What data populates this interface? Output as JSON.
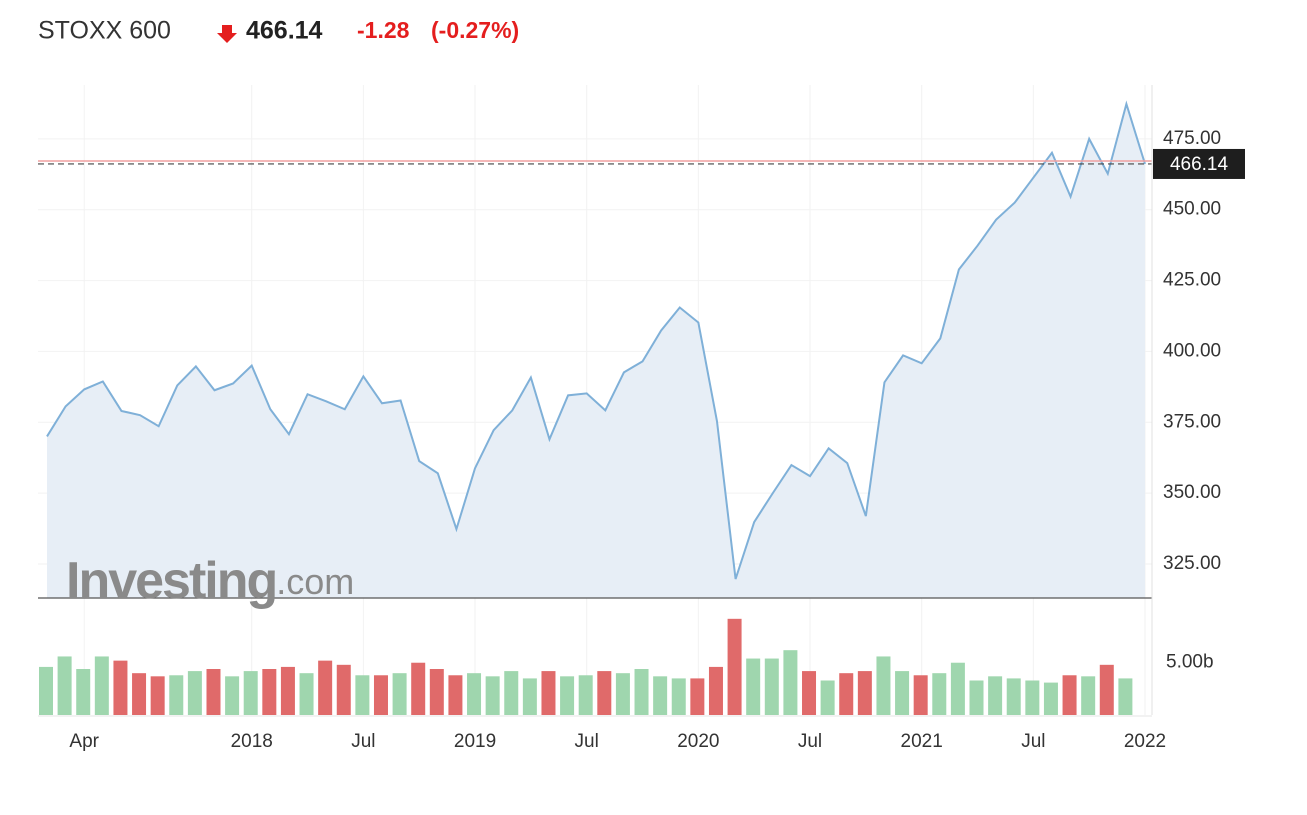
{
  "header": {
    "symbol": "STOXX 600",
    "price": "466.14",
    "change": "-1.28",
    "change_percent": "(-0.27%)"
  },
  "watermark": {
    "brand": "Investing",
    "suffix": ".com"
  },
  "chart_data": [
    {
      "type": "area",
      "color": "#7fb0d8",
      "fill": "#e7eef6",
      "grid": true,
      "x": [
        "2017-02",
        "2017-03",
        "2017-04",
        "2017-05",
        "2017-06",
        "2017-07",
        "2017-08",
        "2017-09",
        "2017-10",
        "2017-11",
        "2017-12",
        "2018-01",
        "2018-02",
        "2018-03",
        "2018-04",
        "2018-05",
        "2018-06",
        "2018-07",
        "2018-08",
        "2018-09",
        "2018-10",
        "2018-11",
        "2018-12",
        "2019-01",
        "2019-02",
        "2019-03",
        "2019-04",
        "2019-05",
        "2019-06",
        "2019-07",
        "2019-08",
        "2019-09",
        "2019-10",
        "2019-11",
        "2019-12",
        "2020-01",
        "2020-02",
        "2020-03",
        "2020-04",
        "2020-05",
        "2020-06",
        "2020-07",
        "2020-08",
        "2020-09",
        "2020-10",
        "2020-11",
        "2020-12",
        "2021-01",
        "2021-02",
        "2021-03",
        "2021-04",
        "2021-05",
        "2021-06",
        "2021-07",
        "2021-08",
        "2021-09",
        "2021-10",
        "2021-11",
        "2021-12",
        "2022-01"
      ],
      "values": [
        370,
        380.6,
        386.6,
        389.4,
        379,
        377.5,
        373.6,
        388,
        394.7,
        386.3,
        388.7,
        395,
        379.6,
        370.8,
        384.9,
        382.4,
        379.6,
        391.2,
        381.7,
        382.7,
        361.3,
        357,
        337.3,
        358.8,
        372.2,
        379.2,
        390.8,
        369,
        384.5,
        385.2,
        379.2,
        392.6,
        396.5,
        407.4,
        415.5,
        410.2,
        375.4,
        319.7,
        339.8,
        350,
        359.9,
        356,
        365.8,
        360.6,
        341.9,
        389.1,
        398.6,
        395.8,
        404.6,
        428.9,
        437.3,
        446.5,
        452.5,
        461.3,
        470.1,
        454.6,
        475,
        462.7,
        487.3,
        466.14
      ],
      "last_price": 466.14,
      "xlim": [
        "2017-02",
        "2022-01"
      ],
      "xticks": [
        {
          "value": "2017-04",
          "label": "Apr"
        },
        {
          "value": "2018-01",
          "label": "2018"
        },
        {
          "value": "2018-07",
          "label": "Jul"
        },
        {
          "value": "2019-01",
          "label": "2019"
        },
        {
          "value": "2019-07",
          "label": "Jul"
        },
        {
          "value": "2020-01",
          "label": "2020"
        },
        {
          "value": "2020-07",
          "label": "Jul"
        },
        {
          "value": "2021-01",
          "label": "2021"
        },
        {
          "value": "2021-07",
          "label": "Jul"
        },
        {
          "value": "2022-01",
          "label": "2022"
        }
      ],
      "ylim": [
        313,
        494
      ],
      "yticks": [
        {
          "value": 325,
          "label": "325.00"
        },
        {
          "value": 350,
          "label": "350.00"
        },
        {
          "value": 375,
          "label": "375.00"
        },
        {
          "value": 400,
          "label": "400.00"
        },
        {
          "value": 425,
          "label": "425.00"
        },
        {
          "value": 450,
          "label": "450.00"
        },
        {
          "value": 475,
          "label": "475.00"
        }
      ]
    },
    {
      "type": "bar",
      "x": [
        "2017-02",
        "2017-03",
        "2017-04",
        "2017-05",
        "2017-06",
        "2017-07",
        "2017-08",
        "2017-09",
        "2017-10",
        "2017-11",
        "2017-12",
        "2018-01",
        "2018-02",
        "2018-03",
        "2018-04",
        "2018-05",
        "2018-06",
        "2018-07",
        "2018-08",
        "2018-09",
        "2018-10",
        "2018-11",
        "2018-12",
        "2019-01",
        "2019-02",
        "2019-03",
        "2019-04",
        "2019-05",
        "2019-06",
        "2019-07",
        "2019-08",
        "2019-09",
        "2019-10",
        "2019-11",
        "2019-12",
        "2020-01",
        "2020-02",
        "2020-03",
        "2020-04",
        "2020-05",
        "2020-06",
        "2020-07",
        "2020-08",
        "2020-09",
        "2020-10",
        "2020-11",
        "2020-12",
        "2021-01",
        "2021-02",
        "2021-03",
        "2021-04",
        "2021-05",
        "2021-06",
        "2021-07",
        "2021-08",
        "2021-09",
        "2021-10",
        "2021-11",
        "2021-12"
      ],
      "values": [
        4.6,
        5.6,
        4.4,
        5.6,
        5.2,
        4.0,
        3.7,
        3.8,
        4.2,
        4.4,
        3.7,
        4.2,
        4.4,
        4.6,
        4.0,
        5.2,
        4.8,
        3.8,
        3.8,
        4.0,
        5.0,
        4.4,
        3.8,
        4.0,
        3.7,
        4.2,
        3.5,
        4.2,
        3.7,
        3.8,
        4.2,
        4.0,
        4.4,
        3.7,
        3.5,
        3.5,
        4.6,
        9.2,
        5.4,
        5.4,
        6.2,
        4.2,
        3.3,
        4.0,
        4.2,
        5.6,
        4.2,
        3.8,
        4.0,
        5.0,
        3.3,
        3.7,
        3.5,
        3.3,
        3.1,
        3.8,
        3.7,
        4.8,
        3.5
      ],
      "colors": [
        "#9fd6ae",
        "#9fd6ae",
        "#9fd6ae",
        "#9fd6ae",
        "#e06a6a",
        "#e06a6a",
        "#e06a6a",
        "#9fd6ae",
        "#9fd6ae",
        "#e06a6a",
        "#9fd6ae",
        "#9fd6ae",
        "#e06a6a",
        "#e06a6a",
        "#9fd6ae",
        "#e06a6a",
        "#e06a6a",
        "#9fd6ae",
        "#e06a6a",
        "#9fd6ae",
        "#e06a6a",
        "#e06a6a",
        "#e06a6a",
        "#9fd6ae",
        "#9fd6ae",
        "#9fd6ae",
        "#9fd6ae",
        "#e06a6a",
        "#9fd6ae",
        "#9fd6ae",
        "#e06a6a",
        "#9fd6ae",
        "#9fd6ae",
        "#9fd6ae",
        "#9fd6ae",
        "#e06a6a",
        "#e06a6a",
        "#e06a6a",
        "#9fd6ae",
        "#9fd6ae",
        "#9fd6ae",
        "#e06a6a",
        "#9fd6ae",
        "#e06a6a",
        "#e06a6a",
        "#9fd6ae",
        "#9fd6ae",
        "#e06a6a",
        "#9fd6ae",
        "#9fd6ae",
        "#9fd6ae",
        "#9fd6ae",
        "#9fd6ae",
        "#9fd6ae",
        "#9fd6ae",
        "#e06a6a",
        "#9fd6ae",
        "#e06a6a",
        "#9fd6ae"
      ],
      "ylim": [
        0,
        11
      ],
      "yticks": [
        {
          "value": 5,
          "label": "5.00b"
        }
      ]
    }
  ]
}
